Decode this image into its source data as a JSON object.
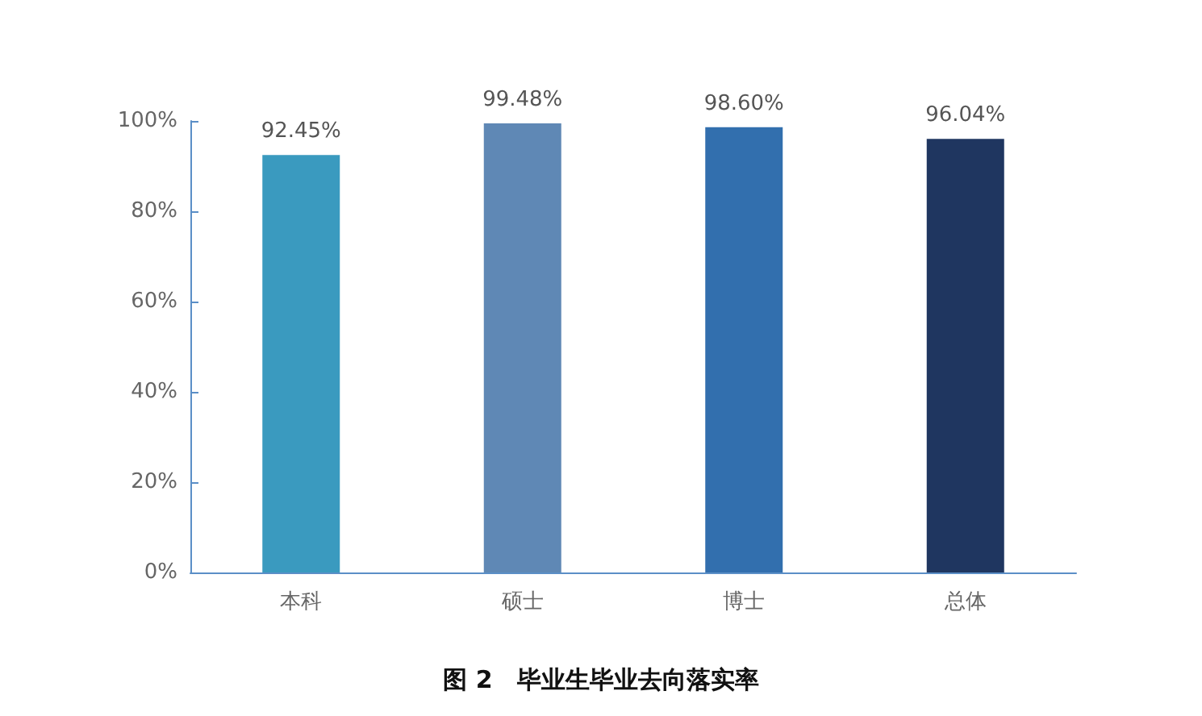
{
  "chart_data": {
    "type": "bar",
    "title": "图 2　毕业生毕业去向落实率",
    "categories": [
      "本科",
      "硕士",
      "博士",
      "总体"
    ],
    "values": [
      92.45,
      99.48,
      98.6,
      96.04
    ],
    "colors": [
      "#3a9abf",
      "#5f88b5",
      "#326fae",
      "#1f3660"
    ],
    "value_labels": [
      "92.45%",
      "99.48%",
      "98.60%",
      "96.04%"
    ],
    "ylim": [
      0,
      100
    ],
    "yticks": [
      {
        "value": 0,
        "label": "0%"
      },
      {
        "value": 20,
        "label": "20%"
      },
      {
        "value": 40,
        "label": "40%"
      },
      {
        "value": 60,
        "label": "60%"
      },
      {
        "value": 80,
        "label": "80%"
      },
      {
        "value": 100,
        "label": "100%"
      }
    ],
    "grid": false
  }
}
